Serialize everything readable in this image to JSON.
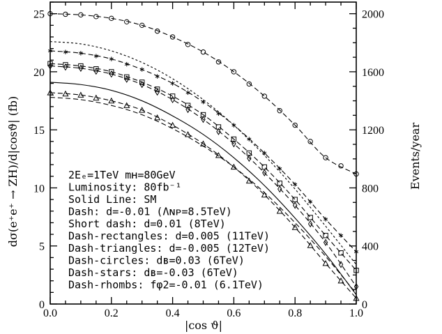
{
  "chart_data": {
    "type": "line",
    "title": "",
    "xlabel": "|cos ϑ|",
    "ylabel": "dσ(e⁺e⁺ → ZH)/d|cosϑ|   (fb)",
    "y2label": "Events/year",
    "xlim": [
      0,
      1
    ],
    "ylim": [
      0,
      26
    ],
    "y2lim": [
      0,
      2080
    ],
    "x_ticks": [
      "0.0",
      "0.2",
      "0.4",
      "0.6",
      "0.8",
      "1.0"
    ],
    "y_ticks": [
      "0",
      "5",
      "10",
      "15",
      "20",
      "25"
    ],
    "y2_ticks": [
      "0",
      "400",
      "800",
      "1200",
      "1600",
      "2000"
    ],
    "grid": false,
    "legend_position": "bottom-left",
    "legend_lines": [
      "2Eₑ=1TeV  mʜ=80GeV",
      "Luminosity: 80fb⁻¹",
      "Solid Line: SM",
      "Dash: d=-0.01 (Λɴᴘ=8.5TeV)",
      "Short dash: d=0.01 (8TeV)",
      "Dash-rectangles: d=0.005 (11TeV)",
      "Dash-triangles: d=-0.005 (12TeV)",
      "Dash-circles: dʙ=0.03 (6TeV)",
      "Dash-stars: dʙ=-0.03 (6TeV)",
      "Dash-rhombs: fφ2=-0.01 (6.1TeV)"
    ],
    "x": [
      0.0,
      0.1,
      0.2,
      0.3,
      0.4,
      0.5,
      0.6,
      0.7,
      0.8,
      0.9,
      1.0
    ],
    "series": [
      {
        "style": "solid",
        "marker": "none",
        "values": [
          19.1,
          18.9,
          18.4,
          17.5,
          16.2,
          14.6,
          12.6,
          10.2,
          7.4,
          4.3,
          0.8
        ]
      },
      {
        "style": "dash",
        "marker": "none",
        "values": [
          17.8,
          17.6,
          17.1,
          16.3,
          15.1,
          13.6,
          11.8,
          9.6,
          7.0,
          4.1,
          0.9
        ]
      },
      {
        "style": "short-dash",
        "marker": "none",
        "values": [
          22.6,
          22.4,
          21.8,
          20.8,
          19.4,
          17.6,
          15.4,
          12.8,
          9.9,
          6.7,
          3.4
        ]
      },
      {
        "style": "dash",
        "marker": "rectangle",
        "values": [
          20.7,
          20.5,
          20.0,
          19.1,
          17.9,
          16.3,
          14.2,
          11.8,
          9.0,
          5.9,
          2.9
        ]
      },
      {
        "style": "dash",
        "marker": "triangle",
        "values": [
          18.2,
          18.0,
          17.5,
          16.7,
          15.4,
          13.8,
          11.8,
          9.4,
          6.6,
          3.5,
          0.5
        ]
      },
      {
        "style": "dash",
        "marker": "circle",
        "values": [
          25.0,
          24.9,
          24.6,
          24.0,
          23.0,
          21.7,
          20.0,
          17.9,
          15.4,
          12.6,
          11.2
        ]
      },
      {
        "style": "dash",
        "marker": "star",
        "values": [
          21.8,
          21.6,
          21.1,
          20.2,
          19.0,
          17.4,
          15.4,
          13.0,
          10.3,
          7.3,
          4.5
        ]
      },
      {
        "style": "dash",
        "marker": "rhomb",
        "values": [
          20.5,
          20.3,
          19.8,
          18.9,
          17.6,
          15.9,
          13.8,
          11.3,
          8.5,
          5.3,
          1.5
        ]
      }
    ]
  }
}
